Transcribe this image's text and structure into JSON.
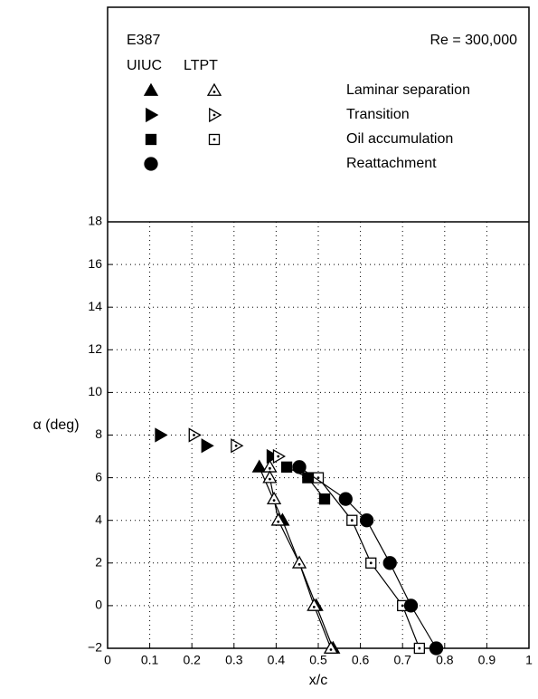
{
  "chart_data": {
    "type": "scatter",
    "title": "E387",
    "subtitle": "Re = 300,000",
    "xlabel": "x/c",
    "ylabel": "α (deg)",
    "sources": [
      "UIUC",
      "LTPT"
    ],
    "xlim": [
      0,
      1
    ],
    "xticks": [
      0,
      0.1,
      0.2,
      0.3,
      0.4,
      0.5,
      0.6,
      0.7,
      0.8,
      0.9,
      1
    ],
    "ylim": [
      -2,
      18
    ],
    "yticks": [
      {
        "value": -2,
        "label": "−2"
      },
      0,
      2,
      4,
      6,
      8,
      10,
      12,
      14,
      16,
      18
    ],
    "grid": true,
    "color": "#000000",
    "series": [
      {
        "name": "Laminar separation",
        "marker": "triangle-up",
        "line": true,
        "data": [
          {
            "x": [
              0.36,
              0.415,
              0.495,
              0.535
            ],
            "values": [
              6.5,
              4,
              0,
              -2
            ]
          },
          {
            "x": [
              0.385,
              0.385,
              0.395,
              0.405,
              0.455,
              0.49,
              0.53
            ],
            "values": [
              6.5,
              6,
              5,
              4,
              2,
              0,
              -2
            ]
          }
        ]
      },
      {
        "name": "Transition",
        "marker": "triangle-right",
        "line": false,
        "data": [
          {
            "x": [
              0.125,
              0.235,
              0.39
            ],
            "values": [
              8,
              7.5,
              7
            ]
          },
          {
            "x": [
              0.205,
              0.305,
              0.405
            ],
            "values": [
              8,
              7.5,
              7
            ]
          }
        ]
      },
      {
        "name": "Oil accumulation",
        "marker": "square",
        "line": true,
        "data": [
          {
            "x": [
              0.425,
              0.475,
              0.515
            ],
            "values": [
              6.5,
              6,
              5
            ]
          },
          {
            "x": [
              0.5,
              0.58,
              0.625,
              0.7,
              0.74
            ],
            "values": [
              6,
              4,
              2,
              0,
              -2
            ]
          }
        ]
      },
      {
        "name": "Reattachment",
        "marker": "circle",
        "line": true,
        "data": [
          {
            "x": [
              0.455,
              0.565,
              0.615,
              0.67,
              0.72,
              0.78
            ],
            "values": [
              6.5,
              5,
              4,
              2,
              0,
              -2
            ]
          }
        ]
      }
    ]
  }
}
